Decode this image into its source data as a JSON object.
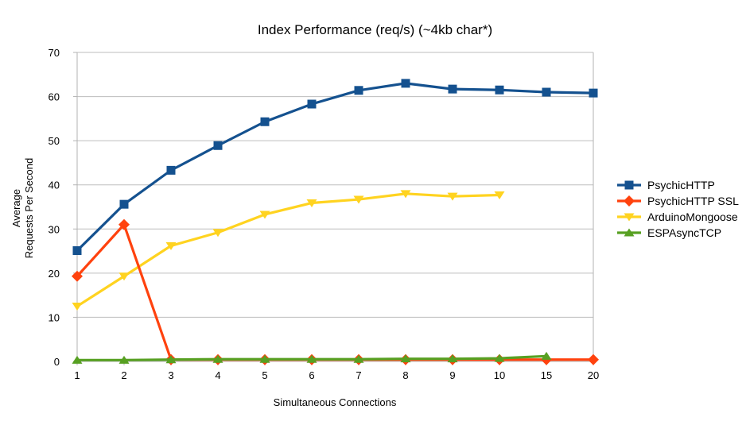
{
  "chart_data": {
    "type": "line",
    "title": "Index Performance (req/s) (~4kb char*)",
    "xlabel": "Simultaneous Connections",
    "ylabel": "Average\nRequests Per Second",
    "categories": [
      "1",
      "2",
      "3",
      "4",
      "5",
      "6",
      "7",
      "8",
      "9",
      "10",
      "15",
      "20"
    ],
    "y_ticks": [
      0,
      10,
      20,
      30,
      40,
      50,
      60,
      70
    ],
    "ylim": [
      0,
      70
    ],
    "grid": "horizontal",
    "legend_position": "right",
    "colors": {
      "grid": "#bdbdbd",
      "axis": "#b3b3b3",
      "background": "#ffffff",
      "text": "#000000"
    },
    "series": [
      {
        "name": "PsychicHTTP",
        "color": "#14518F",
        "marker": "square",
        "values": [
          25.1,
          35.6,
          43.3,
          48.9,
          54.3,
          58.3,
          61.4,
          63.0,
          61.7,
          61.5,
          61.0,
          60.8
        ]
      },
      {
        "name": "PsychicHTTP SSL",
        "color": "#FF420E",
        "marker": "diamond",
        "values": [
          19.3,
          31.0,
          0.4,
          0.4,
          0.4,
          0.4,
          0.4,
          0.4,
          0.4,
          0.4,
          0.4,
          0.4
        ]
      },
      {
        "name": "ArduinoMongoose",
        "color": "#FFD320",
        "marker": "triangle-down",
        "values": [
          12.5,
          19.3,
          26.2,
          29.2,
          33.3,
          35.9,
          36.7,
          38.0,
          37.4,
          37.7,
          null,
          null
        ]
      },
      {
        "name": "ESPAsyncTCP",
        "color": "#57A022",
        "marker": "triangle-up",
        "values": [
          0.3,
          0.3,
          0.4,
          0.5,
          0.5,
          0.5,
          0.5,
          0.6,
          0.6,
          0.7,
          1.2,
          null
        ]
      }
    ]
  }
}
